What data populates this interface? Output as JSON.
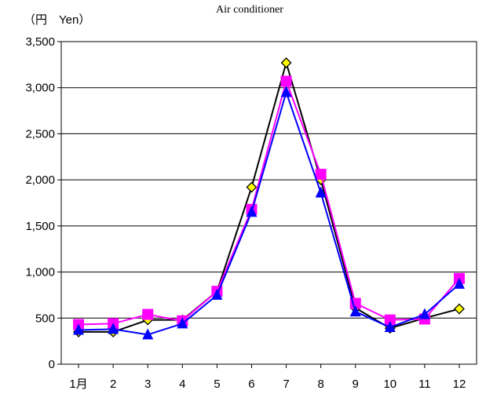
{
  "chart_data": {
    "type": "line",
    "title": "Air conditioner",
    "ylabel": "（円　Yen）",
    "xlabel": "",
    "ylim": [
      0,
      3500
    ],
    "y_ticks": [
      0,
      500,
      1000,
      1500,
      2000,
      2500,
      3000,
      3500
    ],
    "y_tick_labels": [
      "0",
      "500",
      "1,000",
      "1,500",
      "2,000",
      "2,500",
      "3,000",
      "3,500"
    ],
    "categories": [
      "1月",
      "2",
      "3",
      "4",
      "5",
      "6",
      "7",
      "8",
      "9",
      "10",
      "11",
      "12"
    ],
    "grid": "horizontal",
    "series": [
      {
        "color": "#000000",
        "marker": "diamond",
        "marker_fill": "#ffff00",
        "values": [
          350,
          350,
          480,
          480,
          790,
          1920,
          3270,
          2000,
          610,
          390,
          500,
          600
        ]
      },
      {
        "color": "#ff00ff",
        "marker": "square",
        "marker_fill": "#ff00ff",
        "values": [
          430,
          440,
          540,
          470,
          790,
          1680,
          3070,
          2060,
          660,
          480,
          490,
          930
        ]
      },
      {
        "color": "#0000ff",
        "marker": "triangle",
        "marker_fill": "#0000ff",
        "values": [
          370,
          380,
          320,
          440,
          750,
          1650,
          2950,
          1860,
          570,
          400,
          540,
          870
        ]
      }
    ]
  }
}
